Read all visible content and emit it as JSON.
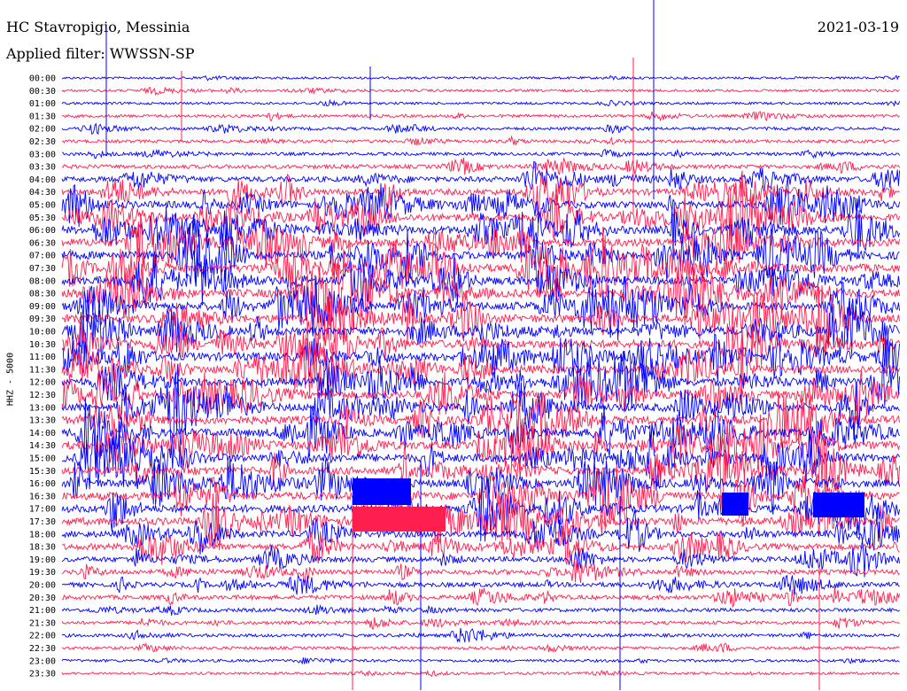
{
  "header": {
    "station": "HC Stavropigio, Messinia",
    "date": "2021-03-19",
    "filter": "Applied filter: WWSSN-SP",
    "channel": "HHZ - 5000"
  },
  "colors": {
    "trace_a": "#0000ff",
    "trace_b": "#ff1f4f",
    "background": "#ffffff"
  },
  "chart_data": {
    "type": "line",
    "title": "HC Stavropigio, Messinia",
    "subtitle": "Applied filter: WWSSN-SP",
    "ylabel": "HHZ - 5000",
    "tick_labels": [
      "00:00",
      "00:30",
      "01:00",
      "01:30",
      "02:00",
      "02:30",
      "03:00",
      "03:30",
      "04:00",
      "04:30",
      "05:00",
      "05:30",
      "06:00",
      "06:30",
      "07:00",
      "07:30",
      "08:00",
      "08:30",
      "09:00",
      "09:30",
      "10:00",
      "10:30",
      "11:00",
      "11:30",
      "12:00",
      "12:30",
      "13:00",
      "13:30",
      "14:00",
      "14:30",
      "15:00",
      "15:30",
      "16:00",
      "16:30",
      "17:00",
      "17:30",
      "18:00",
      "18:30",
      "19:00",
      "19:30",
      "20:00",
      "20:30",
      "21:00",
      "21:30",
      "22:00",
      "22:30",
      "23:00",
      "23:30"
    ],
    "series_colors": [
      "#0000ff",
      "#ff1f4f"
    ],
    "row_activity": [
      0.08,
      0.12,
      0.1,
      0.18,
      0.2,
      0.2,
      0.22,
      0.35,
      0.55,
      0.7,
      0.85,
      0.9,
      0.95,
      1.0,
      1.0,
      1.0,
      1.0,
      1.0,
      1.0,
      1.0,
      1.0,
      1.0,
      1.0,
      1.0,
      1.0,
      1.0,
      1.0,
      1.0,
      1.0,
      1.0,
      1.0,
      0.95,
      0.95,
      0.95,
      0.9,
      0.9,
      0.75,
      0.7,
      0.55,
      0.5,
      0.45,
      0.4,
      0.3,
      0.25,
      0.22,
      0.18,
      0.15,
      0.12
    ],
    "grid": false
  }
}
